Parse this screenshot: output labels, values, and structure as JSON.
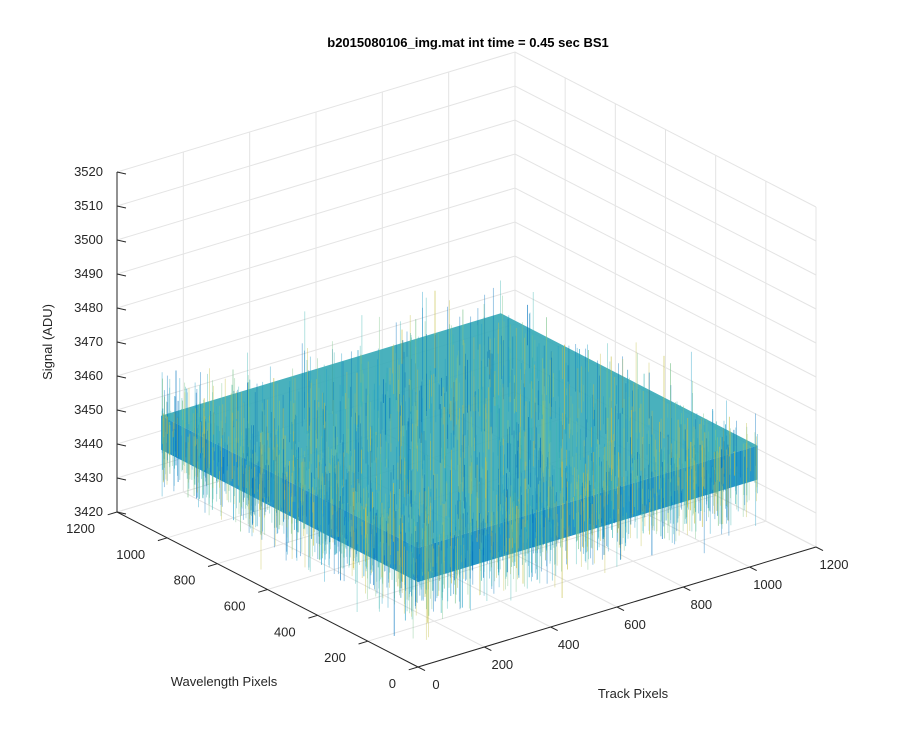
{
  "chart_data": {
    "type": "surface",
    "title": "b2015080106_img.mat int time = 0.45 sec   BS1",
    "xlabel": "Track Pixels",
    "ylabel": "Wavelength Pixels",
    "zlabel": "Signal (ADU)",
    "xlim": [
      0,
      1200
    ],
    "ylim": [
      0,
      1200
    ],
    "zlim": [
      3420,
      3520
    ],
    "x_ticks": [
      "0",
      "200",
      "400",
      "600",
      "800",
      "1000",
      "1200"
    ],
    "y_ticks": [
      "0",
      "200",
      "400",
      "600",
      "800",
      "1000",
      "1200"
    ],
    "z_ticks": [
      "3420",
      "3430",
      "3440",
      "3450",
      "3460",
      "3470",
      "3480",
      "3490",
      "3500",
      "3510",
      "3520"
    ],
    "data_extent": {
      "x": [
        0,
        1024
      ],
      "y": [
        0,
        1024
      ]
    },
    "mean_signal": 3450,
    "signal_range": [
      3420,
      3495
    ],
    "grid": true,
    "colormap": [
      "#0072bd",
      "#1f9ec7",
      "#3fb7b4",
      "#7cc48a",
      "#c6c04a"
    ]
  }
}
